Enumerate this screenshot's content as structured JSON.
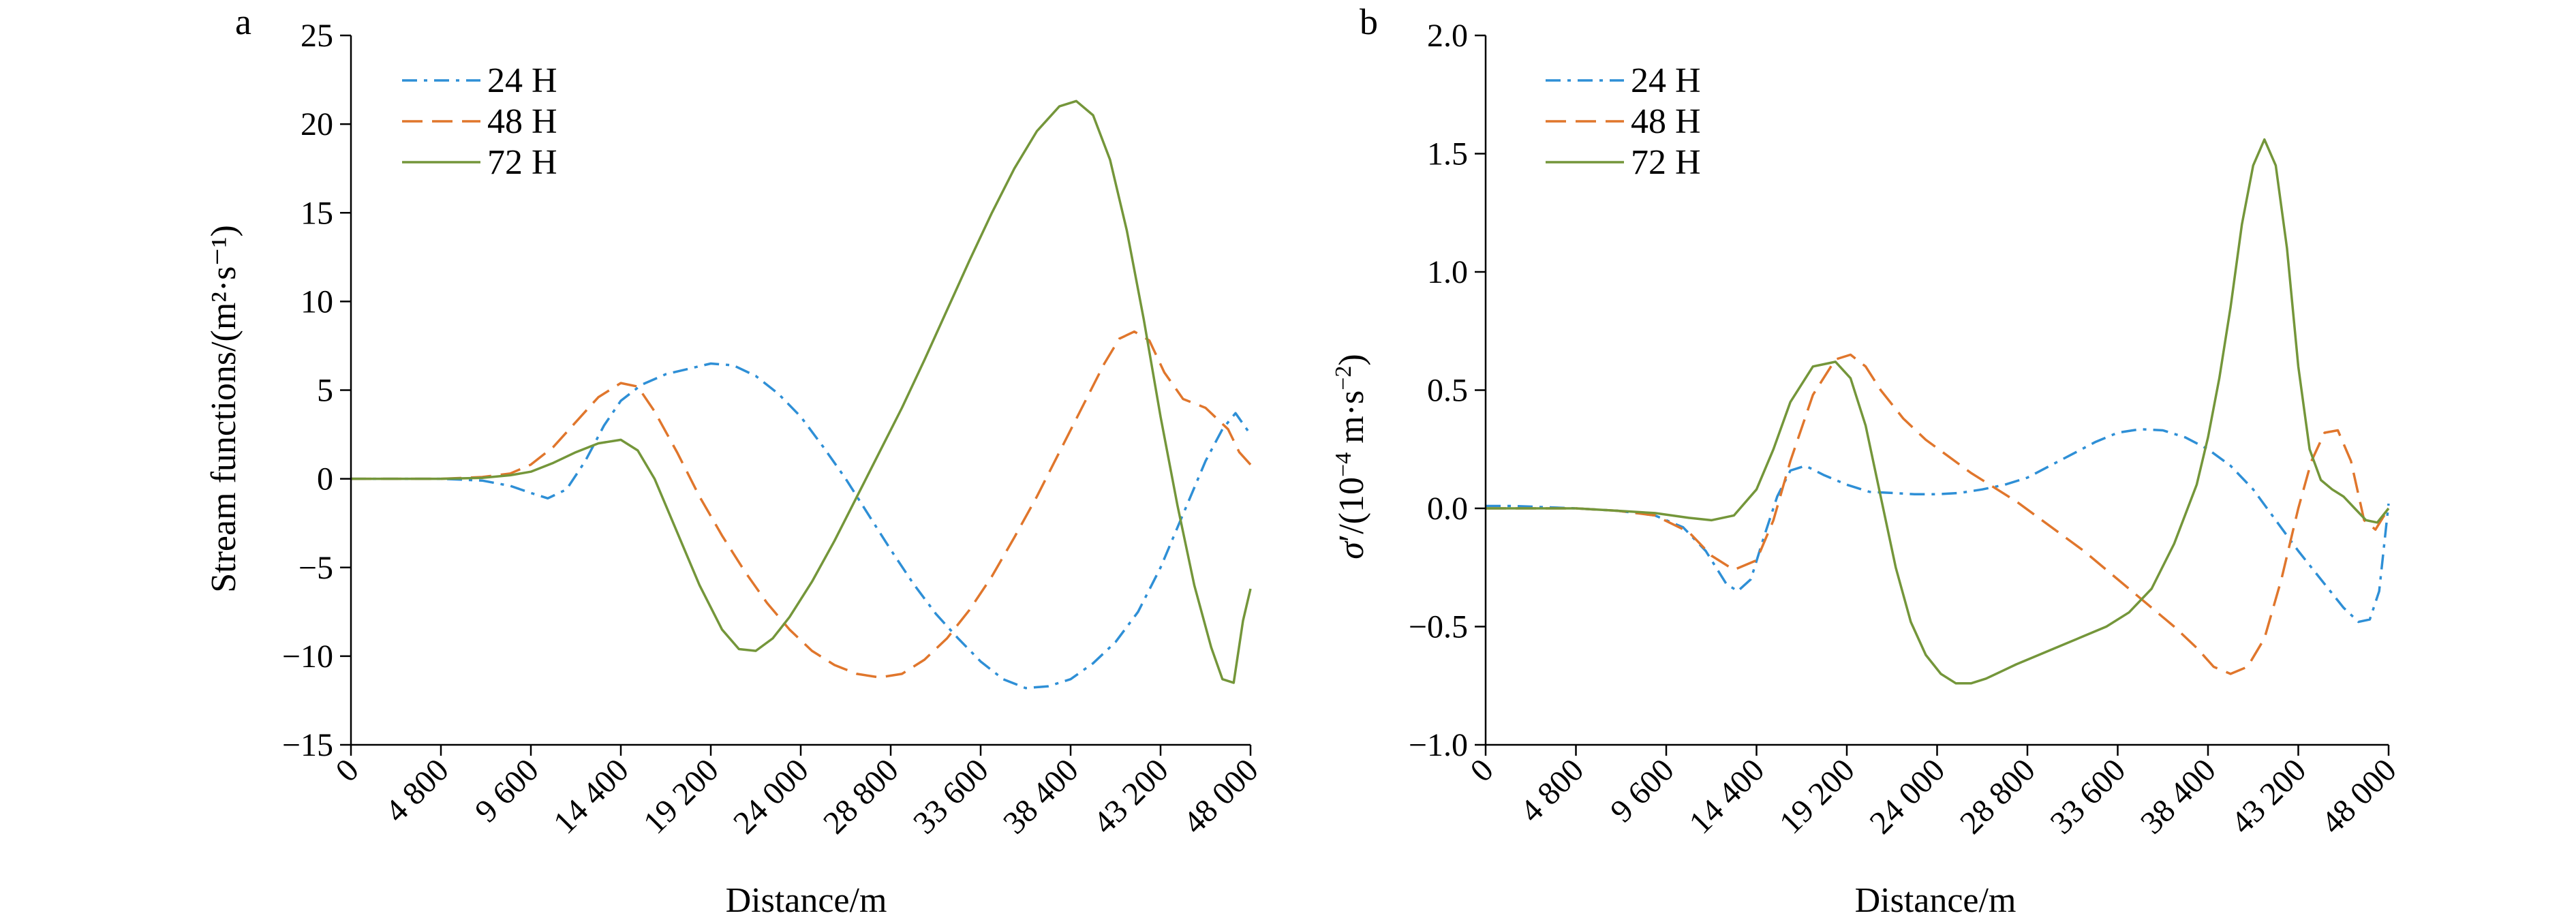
{
  "colors": {
    "series_24h": "#2e8fd6",
    "series_48h": "#e0762c",
    "series_72h": "#74963a",
    "axis": "#000000"
  },
  "chart_data": [
    {
      "panel": "a",
      "type": "line",
      "xlabel": "Distance/m",
      "ylabel": "Stream functions/(m²·s⁻¹)",
      "xlim": [
        0,
        48000
      ],
      "ylim": [
        -15,
        25
      ],
      "x_ticks": [
        0,
        4800,
        9600,
        14400,
        19200,
        24000,
        28800,
        33600,
        38400,
        43200,
        48000
      ],
      "x_tick_labels": [
        "0",
        "4 800",
        "9 600",
        "14 400",
        "19 200",
        "24 000",
        "28 800",
        "33 600",
        "38 400",
        "43 200",
        "48 000"
      ],
      "y_ticks": [
        -15,
        -10,
        -5,
        0,
        5,
        10,
        15,
        20,
        25
      ],
      "y_tick_labels": [
        "−15",
        "−10",
        "−5",
        "0",
        "5",
        "10",
        "15",
        "20",
        "25"
      ],
      "legend": "top-left",
      "grid": false,
      "series": [
        {
          "name": "24 H",
          "style": "dashdot",
          "color": "#2e8fd6",
          "x": [
            0,
            4800,
            7000,
            8500,
            9600,
            10500,
            11500,
            12500,
            13500,
            14400,
            15500,
            16800,
            18000,
            19200,
            20400,
            21600,
            22800,
            24000,
            25200,
            26400,
            27600,
            28800,
            30000,
            31200,
            32400,
            33600,
            34800,
            36000,
            37200,
            38400,
            39600,
            40800,
            42000,
            43200,
            44400,
            45600,
            46500,
            47200,
            48000
          ],
          "y": [
            0,
            0,
            -0.1,
            -0.4,
            -0.8,
            -1.1,
            -0.6,
            1.0,
            3.0,
            4.4,
            5.3,
            5.9,
            6.2,
            6.5,
            6.4,
            5.8,
            4.8,
            3.5,
            1.8,
            0.0,
            -2.0,
            -4.0,
            -5.9,
            -7.6,
            -9.0,
            -10.3,
            -11.3,
            -11.8,
            -11.7,
            -11.3,
            -10.4,
            -9.2,
            -7.5,
            -5.0,
            -2.0,
            1.0,
            2.8,
            3.7,
            2.5
          ]
        },
        {
          "name": "48 H",
          "style": "dash",
          "color": "#e0762c",
          "x": [
            0,
            4800,
            7000,
            8500,
            9600,
            10800,
            12000,
            13200,
            14400,
            15300,
            16200,
            17400,
            18600,
            19800,
            21000,
            22200,
            23400,
            24600,
            25800,
            27000,
            28200,
            29400,
            30600,
            31800,
            33000,
            34200,
            35400,
            36600,
            37800,
            39000,
            40200,
            41000,
            41800,
            42600,
            43400,
            44400,
            45600,
            46800,
            47400,
            48000
          ],
          "y": [
            0,
            0,
            0.1,
            0.3,
            0.8,
            1.8,
            3.2,
            4.6,
            5.4,
            5.2,
            3.8,
            1.5,
            -1.0,
            -3.2,
            -5.2,
            -7.0,
            -8.5,
            -9.7,
            -10.5,
            -11.0,
            -11.2,
            -11.0,
            -10.2,
            -9.0,
            -7.4,
            -5.5,
            -3.3,
            -1.0,
            1.5,
            4.0,
            6.5,
            7.9,
            8.3,
            7.8,
            6.0,
            4.5,
            4.0,
            2.8,
            1.5,
            0.8
          ]
        },
        {
          "name": "72 H",
          "style": "solid",
          "color": "#74963a",
          "x": [
            0,
            4800,
            7000,
            8500,
            9600,
            10800,
            12000,
            13200,
            14400,
            15300,
            16200,
            17400,
            18600,
            19800,
            20700,
            21600,
            22500,
            23400,
            24600,
            25800,
            27000,
            28200,
            29400,
            30600,
            31800,
            33000,
            34200,
            35400,
            36600,
            37800,
            38700,
            39600,
            40500,
            41400,
            42300,
            43200,
            44100,
            45000,
            45900,
            46500,
            47100,
            47600,
            48000
          ],
          "y": [
            0,
            0,
            0.05,
            0.2,
            0.4,
            0.9,
            1.5,
            2.0,
            2.2,
            1.6,
            0.0,
            -3.0,
            -6.0,
            -8.5,
            -9.6,
            -9.7,
            -9.0,
            -7.8,
            -5.8,
            -3.5,
            -1.0,
            1.5,
            4.0,
            6.7,
            9.5,
            12.3,
            15.0,
            17.5,
            19.6,
            21.0,
            21.3,
            20.5,
            18.0,
            14.0,
            9.0,
            3.5,
            -1.5,
            -6.0,
            -9.5,
            -11.3,
            -11.5,
            -8.0,
            -6.2
          ]
        }
      ]
    },
    {
      "panel": "b",
      "type": "line",
      "xlabel": "Distance/m",
      "ylabel_parts": {
        "sym": "σ",
        "prime": "′",
        "unit_open": "/(10",
        "exp1": "−4",
        "unit_mid": " m·s",
        "exp2": "−2",
        "unit_close": ")"
      },
      "xlim": [
        0,
        48000
      ],
      "ylim": [
        -1.0,
        2.0
      ],
      "x_ticks": [
        0,
        4800,
        9600,
        14400,
        19200,
        24000,
        28800,
        33600,
        38400,
        43200,
        48000
      ],
      "x_tick_labels": [
        "0",
        "4 800",
        "9 600",
        "14 400",
        "19 200",
        "24 000",
        "28 800",
        "33 600",
        "38 400",
        "43 200",
        "48 000"
      ],
      "y_ticks": [
        -1.0,
        -0.5,
        0.0,
        0.5,
        1.0,
        1.5,
        2.0
      ],
      "y_tick_labels": [
        "−1.0",
        "−0.5",
        "0.0",
        "0.5",
        "1.0",
        "1.5",
        "2.0"
      ],
      "legend": "top-left",
      "grid": false,
      "series": [
        {
          "name": "24 H",
          "style": "dashdot",
          "color": "#2e8fd6",
          "x": [
            0,
            1500,
            4800,
            7000,
            9000,
            10500,
            11700,
            12800,
            13400,
            14100,
            14800,
            15500,
            16200,
            17000,
            18000,
            19200,
            20400,
            21600,
            22800,
            24000,
            25200,
            26400,
            27600,
            28800,
            30000,
            31200,
            32400,
            33600,
            34800,
            36000,
            37200,
            38400,
            39600,
            40800,
            42000,
            43200,
            44400,
            45600,
            46400,
            47000,
            47500,
            48000
          ],
          "y": [
            0.01,
            0.01,
            0.0,
            -0.01,
            -0.03,
            -0.08,
            -0.18,
            -0.32,
            -0.35,
            -0.3,
            -0.12,
            0.05,
            0.16,
            0.18,
            0.14,
            0.1,
            0.07,
            0.065,
            0.06,
            0.06,
            0.065,
            0.08,
            0.1,
            0.13,
            0.18,
            0.23,
            0.28,
            0.32,
            0.335,
            0.33,
            0.3,
            0.25,
            0.18,
            0.08,
            -0.05,
            -0.18,
            -0.3,
            -0.42,
            -0.48,
            -0.47,
            -0.35,
            0.02
          ]
        },
        {
          "name": "48 H",
          "style": "dash",
          "color": "#e0762c",
          "x": [
            0,
            4800,
            7000,
            9000,
            10800,
            12000,
            13200,
            14400,
            15300,
            16200,
            17400,
            18600,
            19400,
            20200,
            21000,
            22200,
            23400,
            24600,
            25800,
            27000,
            28200,
            29400,
            30600,
            31800,
            33000,
            34200,
            35400,
            36600,
            37800,
            38700,
            39600,
            40500,
            41400,
            42300,
            43200,
            43900,
            44600,
            45300,
            46000,
            46700,
            47300,
            48000
          ],
          "y": [
            0,
            0,
            -0.01,
            -0.03,
            -0.1,
            -0.2,
            -0.26,
            -0.22,
            -0.05,
            0.2,
            0.48,
            0.63,
            0.65,
            0.6,
            0.5,
            0.38,
            0.29,
            0.22,
            0.15,
            0.09,
            0.03,
            -0.04,
            -0.11,
            -0.18,
            -0.26,
            -0.34,
            -0.42,
            -0.5,
            -0.59,
            -0.67,
            -0.7,
            -0.67,
            -0.55,
            -0.3,
            0.0,
            0.2,
            0.32,
            0.33,
            0.2,
            -0.05,
            -0.09,
            0.0
          ]
        },
        {
          "name": "72 H",
          "style": "solid",
          "color": "#74963a",
          "x": [
            0,
            4800,
            7000,
            9000,
            10800,
            12000,
            13200,
            14400,
            15300,
            16200,
            17400,
            18600,
            19400,
            20200,
            21000,
            21800,
            22600,
            23400,
            24200,
            25000,
            25800,
            26600,
            27400,
            28200,
            29400,
            30600,
            31800,
            33000,
            34200,
            35400,
            36600,
            37800,
            38400,
            39000,
            39600,
            40200,
            40800,
            41400,
            42000,
            42600,
            43200,
            43800,
            44400,
            45000,
            45600,
            46200,
            46800,
            47400,
            48000
          ],
          "y": [
            0,
            0,
            -0.01,
            -0.02,
            -0.04,
            -0.05,
            -0.03,
            0.08,
            0.25,
            0.45,
            0.6,
            0.62,
            0.55,
            0.35,
            0.05,
            -0.25,
            -0.48,
            -0.62,
            -0.7,
            -0.74,
            -0.74,
            -0.72,
            -0.69,
            -0.66,
            -0.62,
            -0.58,
            -0.54,
            -0.5,
            -0.44,
            -0.34,
            -0.15,
            0.1,
            0.3,
            0.55,
            0.85,
            1.2,
            1.45,
            1.56,
            1.45,
            1.1,
            0.6,
            0.25,
            0.12,
            0.08,
            0.05,
            0.0,
            -0.05,
            -0.06,
            0.0
          ]
        }
      ]
    }
  ]
}
